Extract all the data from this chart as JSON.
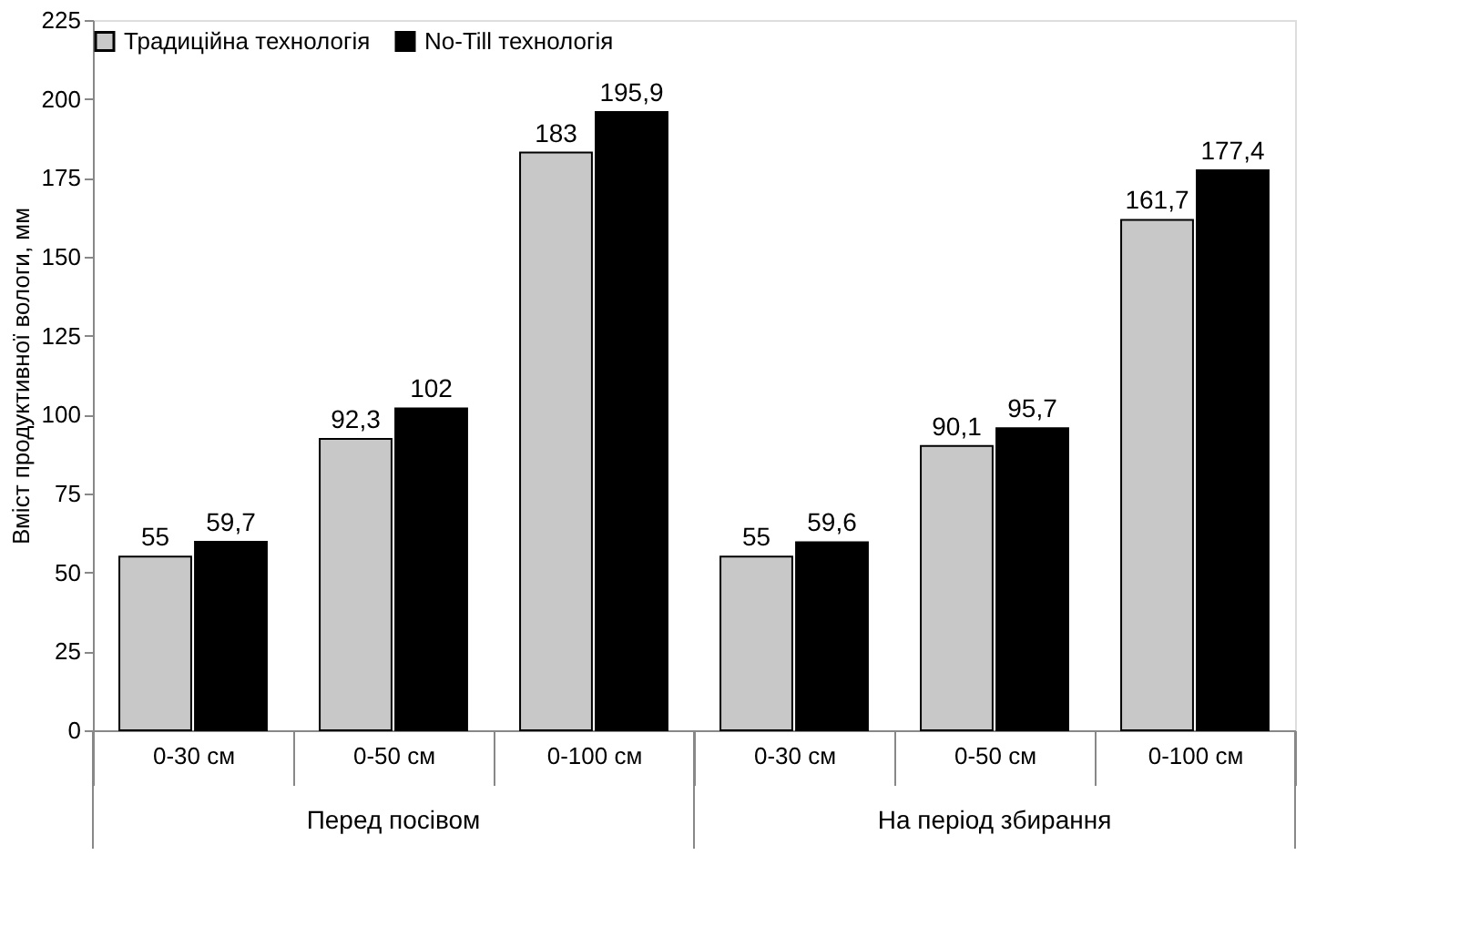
{
  "chart_data": {
    "type": "bar",
    "ylabel": "Вміст продуктивної вологи, мм",
    "categories": [
      "0-30 см",
      "0-50 см",
      "0-100 см",
      "0-30 см",
      "0-50 см",
      "0-100 см"
    ],
    "annotations": [
      "Перед посівом",
      "На період збирання"
    ],
    "series": [
      {
        "name": "Традиційна технологія",
        "color": "#c8c8c8",
        "values": [
          55,
          92.3,
          183,
          55,
          90.1,
          161.7
        ],
        "value_labels": [
          "55",
          "92,3",
          "183",
          "55",
          "90,1",
          "161,7"
        ]
      },
      {
        "name": "No-Till технологія",
        "color": "#000000",
        "values": [
          59.7,
          102,
          195.9,
          59.6,
          95.7,
          177.4
        ],
        "value_labels": [
          "59,7",
          "102",
          "195,9",
          "59,6",
          "95,7",
          "177,4"
        ]
      }
    ],
    "ylim": [
      0,
      225
    ],
    "yticks": [
      0,
      25,
      50,
      75,
      100,
      125,
      150,
      175,
      200,
      225
    ],
    "grid": false,
    "legend": "top"
  }
}
